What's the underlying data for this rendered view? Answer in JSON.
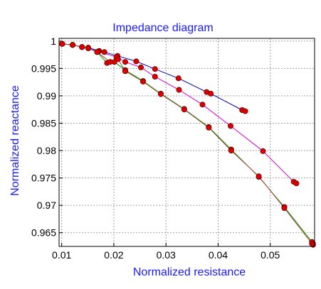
{
  "chart_data": {
    "type": "line",
    "title": "Impedance diagram",
    "xlabel": "Normalized resistance",
    "ylabel": "Normalized reactance",
    "xlim": [
      0.0095,
      0.0585
    ],
    "ylim": [
      0.9625,
      1.0005
    ],
    "xticks": [
      0.01,
      0.02,
      0.03,
      0.04,
      0.05
    ],
    "xtick_labels": [
      "0.01",
      "0.02",
      "0.03",
      "0.04",
      "0.05"
    ],
    "yticks": [
      0.965,
      0.97,
      0.975,
      0.98,
      0.985,
      0.99,
      0.995,
      1.0
    ],
    "ytick_labels": [
      "0.965",
      "0.97",
      "0.975",
      "0.98",
      "0.985",
      "0.99",
      "0.995",
      "1"
    ],
    "grid": true,
    "marker_color": "#dd0000",
    "series": [
      {
        "color": "#0000c0",
        "x": [
          0.0101,
          0.0121,
          0.0139,
          0.0151,
          0.0172,
          0.0182,
          0.0207,
          0.0243,
          0.0279,
          0.0324,
          0.0378,
          0.0386,
          0.0446,
          0.0452
        ],
        "y": [
          0.9995,
          0.9993,
          0.9989,
          0.9988,
          0.9982,
          0.998,
          0.9973,
          0.9963,
          0.9949,
          0.9932,
          0.9907,
          0.9904,
          0.9874,
          0.9872
        ]
      },
      {
        "color": "#d000d0",
        "x": [
          0.0101,
          0.0121,
          0.0139,
          0.0151,
          0.017,
          0.0205,
          0.0222,
          0.0252,
          0.0279,
          0.0325,
          0.037,
          0.0424,
          0.0486,
          0.0545,
          0.055
        ],
        "y": [
          0.9995,
          0.9993,
          0.9989,
          0.9987,
          0.9981,
          0.9971,
          0.9962,
          0.9952,
          0.9935,
          0.9911,
          0.9884,
          0.9845,
          0.9799,
          0.9743,
          0.974
        ]
      },
      {
        "color": "#00a000",
        "x": [
          0.0101,
          0.0121,
          0.0139,
          0.0151,
          0.0168,
          0.0187,
          0.0201,
          0.0222,
          0.0256,
          0.029,
          0.0335,
          0.0382,
          0.0425,
          0.0478,
          0.0527,
          0.058,
          0.0582
        ],
        "y": [
          0.9995,
          0.9993,
          0.9989,
          0.9987,
          0.998,
          0.996,
          0.9962,
          0.9947,
          0.9927,
          0.9904,
          0.9876,
          0.9843,
          0.9802,
          0.9752,
          0.9697,
          0.9633,
          0.963
        ]
      },
      {
        "color": "#b04040",
        "x": [
          0.0101,
          0.0121,
          0.0139,
          0.0151,
          0.0168,
          0.0193,
          0.0208,
          0.0222,
          0.0256,
          0.029,
          0.0335,
          0.0382,
          0.0425,
          0.0478,
          0.0527,
          0.058,
          0.0582
        ],
        "y": [
          0.9995,
          0.9993,
          0.9989,
          0.9987,
          0.998,
          0.9962,
          0.9967,
          0.9945,
          0.9926,
          0.9903,
          0.9875,
          0.9842,
          0.98,
          0.9753,
          0.9695,
          0.963,
          0.9628
        ]
      }
    ]
  }
}
